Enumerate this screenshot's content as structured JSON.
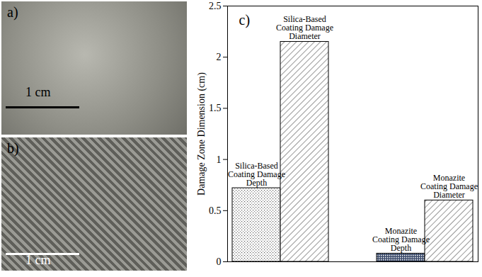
{
  "panels": [
    {
      "label": "a)",
      "scale_bar": "1 cm"
    },
    {
      "label": "b)",
      "scale_bar": "1 cm"
    }
  ],
  "chart_data": {
    "type": "bar",
    "panel_label": "c)",
    "ylabel": "Damage Zone Dimension (cm)",
    "categories": [
      "Silica-Based Coating Damage Depth",
      "Silica-Based Coating Damage Diameter",
      "Monazite Coating Damage Depth",
      "Monazite Coating Damage Diameter"
    ],
    "values": [
      0.72,
      2.15,
      0.08,
      0.6
    ],
    "ylim": [
      0,
      2.5
    ],
    "yticks": [
      0,
      0.5,
      1,
      1.5,
      2,
      2.5
    ],
    "tick_labels": "y"
  }
}
